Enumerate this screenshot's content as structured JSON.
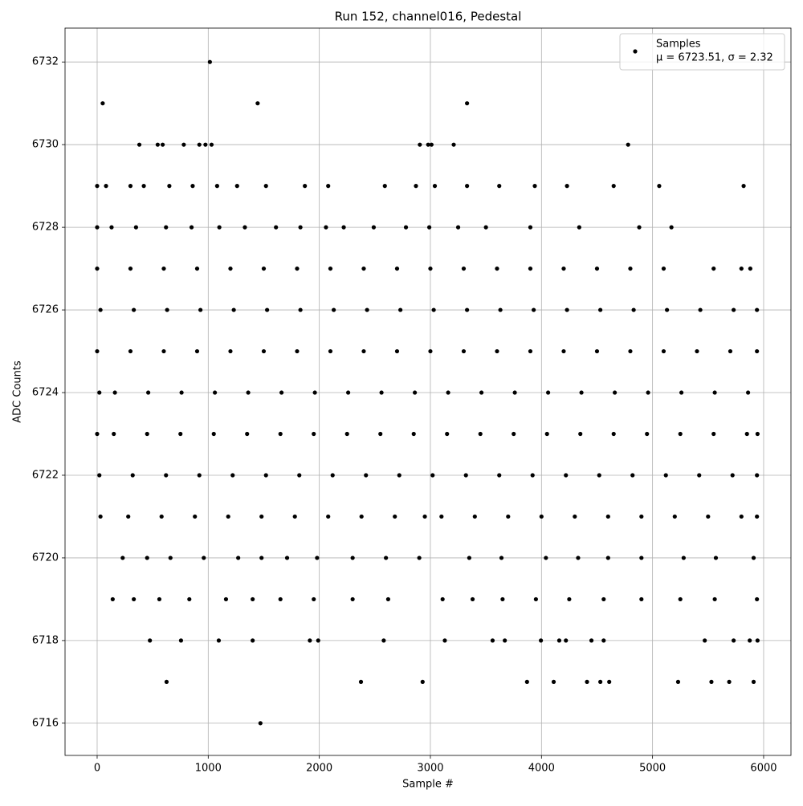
{
  "chart_data": {
    "type": "scatter",
    "title": "Run 152, channel016, Pedestal",
    "x_label": "Sample #",
    "y_label": "ADC Counts",
    "xlim": [
      -289,
      6246
    ],
    "ylim": [
      6715.22,
      6732.82
    ],
    "xticks": [
      0,
      1000,
      2000,
      3000,
      4000,
      5000,
      6000
    ],
    "yticks": [
      6716,
      6718,
      6720,
      6722,
      6724,
      6726,
      6728,
      6730,
      6732
    ],
    "grid": true,
    "legend": "upper right",
    "legend_note": "μ = 6723.51, σ = 2.32",
    "series": [
      {
        "name": "Samples",
        "color": "#000000",
        "x": [
          50,
          1015,
          1445,
          3330,
          1470,
          380,
          545,
          590,
          780,
          920,
          975,
          1030,
          2905,
          2980,
          3010,
          3210,
          4780,
          625,
          2375,
          2930,
          3870,
          4110,
          4410,
          4530,
          4610,
          5230,
          5530,
          5690,
          5910,
          475,
          755,
          1095,
          1400,
          1915,
          1990,
          2580,
          3130,
          3560,
          3670,
          3995,
          4160,
          4220,
          4450,
          4560,
          5470,
          5730,
          5875,
          5945,
          0,
          80,
          300,
          420,
          650,
          860,
          1080,
          1260,
          1520,
          1870,
          2080,
          2590,
          2870,
          3040,
          3330,
          3620,
          3940,
          4230,
          4650,
          5060,
          5820,
          0,
          130,
          350,
          620,
          850,
          1100,
          1330,
          1610,
          1830,
          2060,
          2220,
          2490,
          2780,
          2990,
          3250,
          3500,
          3900,
          4340,
          4880,
          5170,
          0,
          300,
          600,
          900,
          1200,
          1500,
          1800,
          2100,
          2400,
          2700,
          3000,
          3300,
          3600,
          3900,
          4200,
          4500,
          4800,
          5100,
          5550,
          5800,
          5880,
          30,
          330,
          630,
          930,
          1230,
          1530,
          1830,
          2130,
          2430,
          2730,
          3030,
          3330,
          3630,
          3930,
          4230,
          4530,
          4830,
          5130,
          5430,
          5730,
          5940,
          0,
          300,
          600,
          900,
          1200,
          1500,
          1800,
          2100,
          2400,
          2700,
          3000,
          3300,
          3600,
          3900,
          4200,
          4500,
          4800,
          5100,
          5400,
          5700,
          5940,
          20,
          160,
          460,
          760,
          1060,
          1360,
          1660,
          1960,
          2260,
          2560,
          2860,
          3160,
          3460,
          3760,
          4060,
          4360,
          4660,
          4960,
          5260,
          5560,
          5860,
          0,
          150,
          450,
          750,
          1050,
          1350,
          1650,
          1950,
          2250,
          2550,
          2850,
          3150,
          3450,
          3750,
          4050,
          4350,
          4650,
          4950,
          5250,
          5550,
          5850,
          5945,
          20,
          320,
          620,
          920,
          1220,
          1520,
          1820,
          2120,
          2420,
          2720,
          3020,
          3320,
          3620,
          3920,
          4220,
          4520,
          4820,
          5120,
          5420,
          5720,
          5940,
          30,
          280,
          580,
          880,
          1180,
          1480,
          1780,
          2080,
          2380,
          2680,
          2950,
          3100,
          3400,
          3700,
          4000,
          4300,
          4600,
          4900,
          5200,
          5500,
          5800,
          5940,
          230,
          450,
          660,
          960,
          1270,
          1480,
          1710,
          1980,
          2300,
          2600,
          2900,
          3350,
          3640,
          4040,
          4330,
          4600,
          4900,
          5280,
          5570,
          5910,
          140,
          330,
          560,
          830,
          1160,
          1400,
          1650,
          1950,
          2300,
          2620,
          3110,
          3380,
          3650,
          3950,
          4250,
          4560,
          4900,
          5250,
          5560,
          5940
        ],
        "values": [
          6731,
          6732,
          6731,
          6731,
          6716,
          6730,
          6730,
          6730,
          6730,
          6730,
          6730,
          6730,
          6730,
          6730,
          6730,
          6730,
          6730,
          6717,
          6717,
          6717,
          6717,
          6717,
          6717,
          6717,
          6717,
          6717,
          6717,
          6717,
          6717,
          6718,
          6718,
          6718,
          6718,
          6718,
          6718,
          6718,
          6718,
          6718,
          6718,
          6718,
          6718,
          6718,
          6718,
          6718,
          6718,
          6718,
          6718,
          6718,
          6729,
          6729,
          6729,
          6729,
          6729,
          6729,
          6729,
          6729,
          6729,
          6729,
          6729,
          6729,
          6729,
          6729,
          6729,
          6729,
          6729,
          6729,
          6729,
          6729,
          6729,
          6728,
          6728,
          6728,
          6728,
          6728,
          6728,
          6728,
          6728,
          6728,
          6728,
          6728,
          6728,
          6728,
          6728,
          6728,
          6728,
          6728,
          6728,
          6728,
          6728,
          6727,
          6727,
          6727,
          6727,
          6727,
          6727,
          6727,
          6727,
          6727,
          6727,
          6727,
          6727,
          6727,
          6727,
          6727,
          6727,
          6727,
          6727,
          6727,
          6727,
          6727,
          6726,
          6726,
          6726,
          6726,
          6726,
          6726,
          6726,
          6726,
          6726,
          6726,
          6726,
          6726,
          6726,
          6726,
          6726,
          6726,
          6726,
          6726,
          6726,
          6726,
          6726,
          6725,
          6725,
          6725,
          6725,
          6725,
          6725,
          6725,
          6725,
          6725,
          6725,
          6725,
          6725,
          6725,
          6725,
          6725,
          6725,
          6725,
          6725,
          6725,
          6725,
          6725,
          6724,
          6724,
          6724,
          6724,
          6724,
          6724,
          6724,
          6724,
          6724,
          6724,
          6724,
          6724,
          6724,
          6724,
          6724,
          6724,
          6724,
          6724,
          6724,
          6724,
          6724,
          6723,
          6723,
          6723,
          6723,
          6723,
          6723,
          6723,
          6723,
          6723,
          6723,
          6723,
          6723,
          6723,
          6723,
          6723,
          6723,
          6723,
          6723,
          6723,
          6723,
          6723,
          6723,
          6722,
          6722,
          6722,
          6722,
          6722,
          6722,
          6722,
          6722,
          6722,
          6722,
          6722,
          6722,
          6722,
          6722,
          6722,
          6722,
          6722,
          6722,
          6722,
          6722,
          6722,
          6721,
          6721,
          6721,
          6721,
          6721,
          6721,
          6721,
          6721,
          6721,
          6721,
          6721,
          6721,
          6721,
          6721,
          6721,
          6721,
          6721,
          6721,
          6721,
          6721,
          6721,
          6721,
          6720,
          6720,
          6720,
          6720,
          6720,
          6720,
          6720,
          6720,
          6720,
          6720,
          6720,
          6720,
          6720,
          6720,
          6720,
          6720,
          6720,
          6720,
          6720,
          6720,
          6719,
          6719,
          6719,
          6719,
          6719,
          6719,
          6719,
          6719,
          6719,
          6719,
          6719,
          6719,
          6719,
          6719,
          6719,
          6719,
          6719,
          6719,
          6719,
          6719
        ]
      }
    ]
  }
}
